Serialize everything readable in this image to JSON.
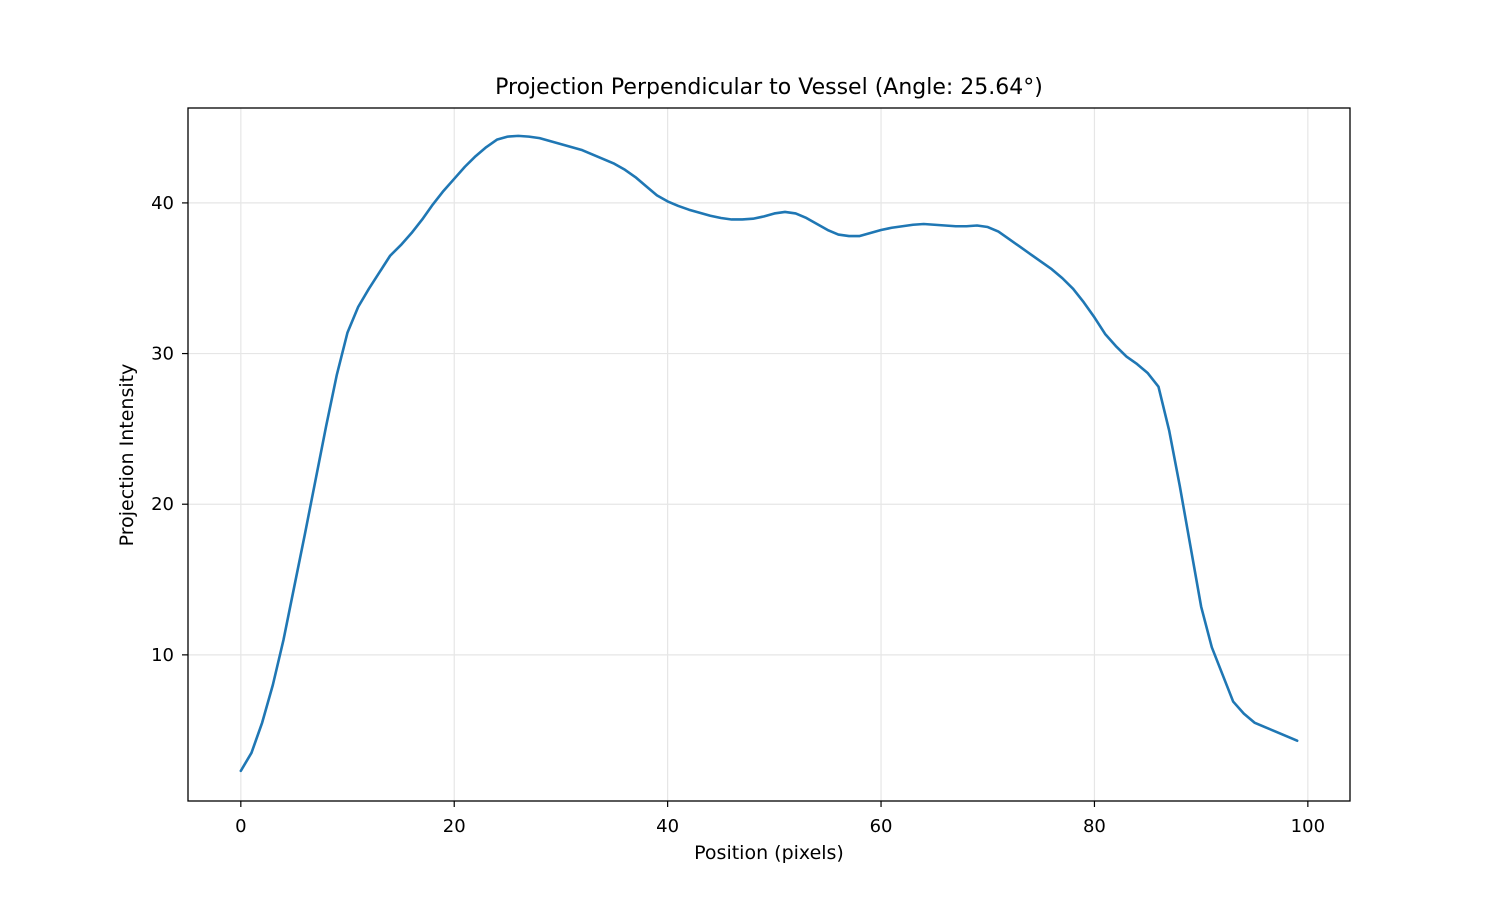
{
  "chart_data": {
    "type": "line",
    "title": "Projection Perpendicular to Vessel (Angle: 25.64°)",
    "xlabel": "Position (pixels)",
    "ylabel": "Projection Intensity",
    "xlim": [
      -4.95,
      103.95
    ],
    "ylim": [
      0.3,
      46.3
    ],
    "xticks": [
      0,
      20,
      40,
      60,
      80,
      100
    ],
    "yticks": [
      10,
      20,
      30,
      40
    ],
    "grid": true,
    "line_color": "#1f77b4",
    "series": [
      {
        "x": [
          0,
          1,
          2,
          3,
          4,
          5,
          6,
          7,
          8,
          9,
          10,
          11,
          12,
          13,
          14,
          15,
          16,
          17,
          18,
          19,
          20,
          21,
          22,
          23,
          24,
          25,
          26,
          27,
          28,
          29,
          30,
          31,
          32,
          33,
          34,
          35,
          36,
          37,
          38,
          39,
          40,
          41,
          42,
          43,
          44,
          45,
          46,
          47,
          48,
          49,
          50,
          51,
          52,
          53,
          54,
          55,
          56,
          57,
          58,
          59,
          60,
          61,
          62,
          63,
          64,
          65,
          66,
          67,
          68,
          69,
          70,
          71,
          72,
          73,
          74,
          75,
          76,
          77,
          78,
          79,
          80,
          81,
          82,
          83,
          84,
          85,
          86,
          87,
          88,
          89,
          90,
          91,
          92,
          93,
          94,
          95,
          96,
          97,
          98,
          99
        ],
        "values": [
          2.3,
          3.5,
          5.5,
          8.0,
          11.0,
          14.5,
          18.0,
          21.6,
          25.2,
          28.6,
          31.4,
          33.1,
          34.3,
          35.4,
          36.5,
          37.2,
          38.0,
          38.9,
          39.9,
          40.8,
          41.6,
          42.4,
          43.1,
          43.7,
          44.2,
          44.4,
          44.45,
          44.4,
          44.3,
          44.1,
          43.9,
          43.7,
          43.5,
          43.2,
          42.9,
          42.6,
          42.2,
          41.7,
          41.1,
          40.5,
          40.1,
          39.8,
          39.55,
          39.35,
          39.15,
          39.0,
          38.9,
          38.9,
          38.95,
          39.1,
          39.3,
          39.4,
          39.3,
          39.0,
          38.6,
          38.2,
          37.9,
          37.8,
          37.8,
          38.0,
          38.2,
          38.35,
          38.45,
          38.55,
          38.6,
          38.55,
          38.5,
          38.45,
          38.45,
          38.5,
          38.4,
          38.1,
          37.6,
          37.1,
          36.6,
          36.1,
          35.6,
          35.0,
          34.3,
          33.4,
          32.4,
          31.3,
          30.5,
          29.8,
          29.3,
          28.7,
          27.8,
          24.9,
          21.2,
          17.2,
          13.2,
          10.5,
          8.7,
          6.9,
          6.1,
          5.5,
          5.2,
          4.9,
          4.6,
          4.3
        ]
      }
    ]
  }
}
